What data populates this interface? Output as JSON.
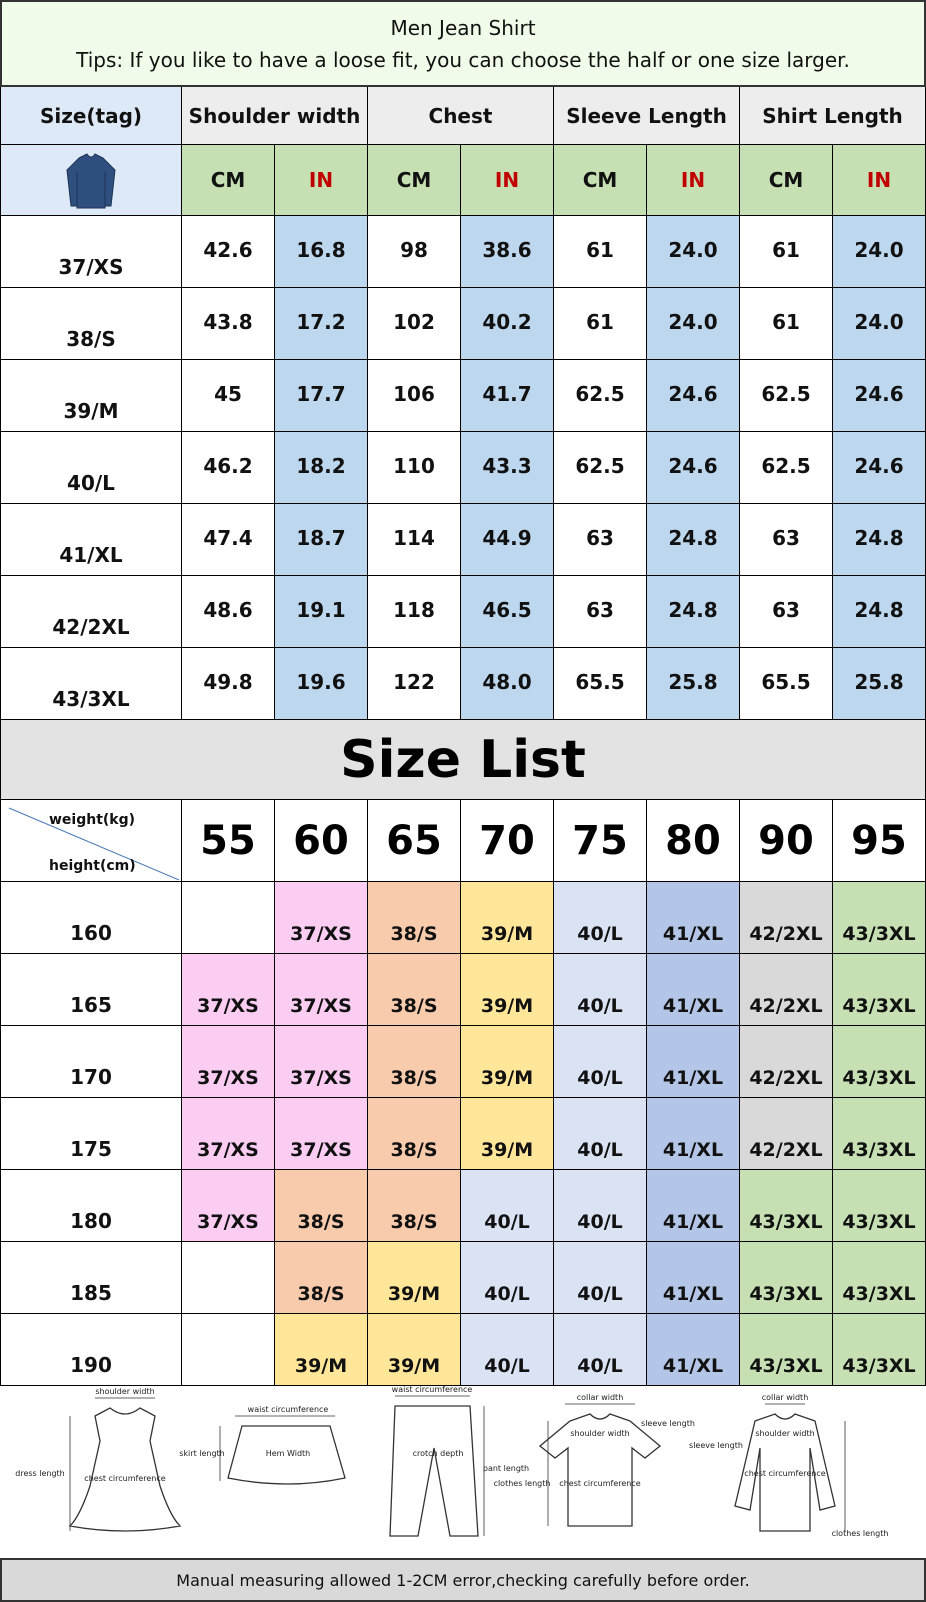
{
  "header": {
    "title": "Men Jean Shirt",
    "tips": "Tips: If you like to have a loose fit, you can choose the half or one size larger."
  },
  "size_table": {
    "columns": [
      "Size(tag)",
      "Shoulder width",
      "Chest",
      "Sleeve Length",
      "Shirt Length"
    ],
    "units": [
      "CM",
      "IN"
    ],
    "rows": [
      [
        "37/XS",
        "42.6",
        "16.8",
        "98",
        "38.6",
        "61",
        "24.0",
        "61",
        "24.0"
      ],
      [
        "38/S",
        "43.8",
        "17.2",
        "102",
        "40.2",
        "61",
        "24.0",
        "61",
        "24.0"
      ],
      [
        "39/M",
        "45",
        "17.7",
        "106",
        "41.7",
        "62.5",
        "24.6",
        "62.5",
        "24.6"
      ],
      [
        "40/L",
        "46.2",
        "18.2",
        "110",
        "43.3",
        "62.5",
        "24.6",
        "62.5",
        "24.6"
      ],
      [
        "41/XL",
        "47.4",
        "18.7",
        "114",
        "44.9",
        "63",
        "24.8",
        "63",
        "24.8"
      ],
      [
        "42/2XL",
        "48.6",
        "19.1",
        "118",
        "46.5",
        "63",
        "24.8",
        "63",
        "24.8"
      ],
      [
        "43/3XL",
        "49.8",
        "19.6",
        "122",
        "48.0",
        "65.5",
        "25.8",
        "65.5",
        "25.8"
      ]
    ]
  },
  "size_list": {
    "title": "Size List",
    "weight_label": "weight(kg)",
    "height_label": "height(cm)",
    "weights": [
      "55",
      "60",
      "65",
      "70",
      "75",
      "80",
      "90",
      "95"
    ],
    "size_colors": {
      "37/XS": "#fbcdf3",
      "38/S": "#f8cbad",
      "39/M": "#ffe699",
      "40/L": "#dae3f3",
      "41/XL": "#b4c6e7",
      "42/2XL": "#d9d9d9",
      "43/3XL": "#c6e0b4"
    },
    "rows": [
      {
        "height": "160",
        "sizes": [
          null,
          "37/XS",
          "38/S",
          "39/M",
          "40/L",
          "41/XL",
          "42/2XL",
          "43/3XL"
        ]
      },
      {
        "height": "165",
        "sizes": [
          "37/XS",
          "37/XS",
          "38/S",
          "39/M",
          "40/L",
          "41/XL",
          "42/2XL",
          "43/3XL"
        ]
      },
      {
        "height": "170",
        "sizes": [
          "37/XS",
          "37/XS",
          "38/S",
          "39/M",
          "40/L",
          "41/XL",
          "42/2XL",
          "43/3XL"
        ]
      },
      {
        "height": "175",
        "sizes": [
          "37/XS",
          "37/XS",
          "38/S",
          "39/M",
          "40/L",
          "41/XL",
          "42/2XL",
          "43/3XL"
        ]
      },
      {
        "height": "180",
        "sizes": [
          "37/XS",
          "38/S",
          "38/S",
          "40/L",
          "40/L",
          "41/XL",
          "43/3XL",
          "43/3XL"
        ]
      },
      {
        "height": "185",
        "sizes": [
          null,
          "38/S",
          "39/M",
          "40/L",
          "40/L",
          "41/XL",
          "43/3XL",
          "43/3XL"
        ]
      },
      {
        "height": "190",
        "sizes": [
          null,
          "39/M",
          "39/M",
          "40/L",
          "40/L",
          "41/XL",
          "43/3XL",
          "43/3XL"
        ]
      }
    ]
  },
  "diagrams": [
    {
      "labels": [
        "shoulder width",
        "dress length",
        "chest circumference"
      ]
    },
    {
      "labels": [
        "waist circumference",
        "skirt length",
        "Hem Width"
      ]
    },
    {
      "labels": [
        "waist circumference",
        "pant length",
        "crotch depth"
      ]
    },
    {
      "labels": [
        "collar width",
        "shoulder width",
        "sleeve length",
        "clothes length",
        "chest circumference"
      ]
    },
    {
      "labels": [
        "collar width",
        "shoulder width",
        "sleeve length",
        "chest circumference",
        "clothes length"
      ]
    }
  ],
  "footer": "Manual measuring allowed 1-2CM error,checking carefully before order."
}
